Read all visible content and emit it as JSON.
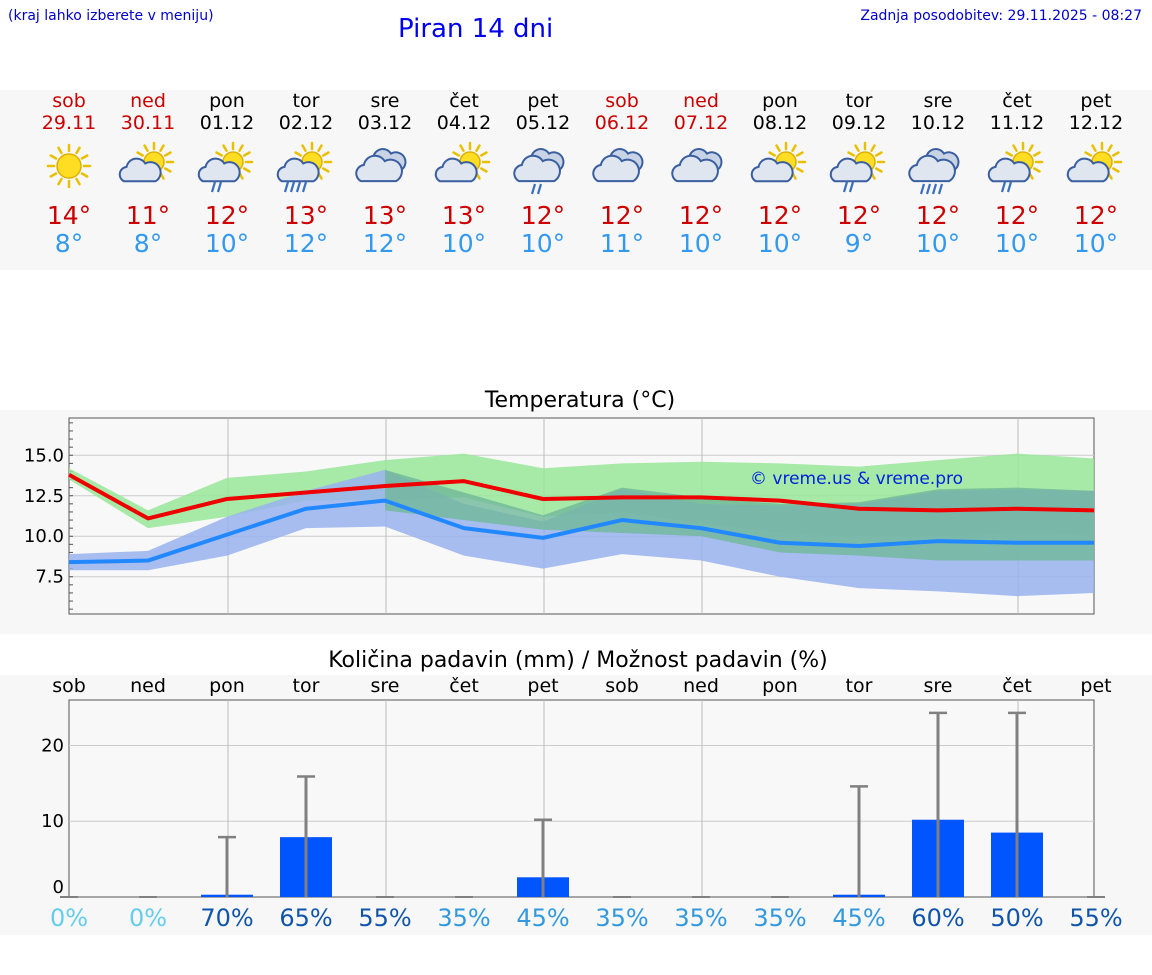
{
  "header": {
    "hint": "(kraj lahko izberete v meniju)",
    "title": "Piran 14 dni",
    "updated": "Zadnja posodobitev: 29.11.2025 - 08:27"
  },
  "days": [
    {
      "name": "sob",
      "date": "29.11",
      "weekend": true,
      "icon": "sun-icon",
      "max": "14°",
      "min": "8°",
      "prob": "0%"
    },
    {
      "name": "ned",
      "date": "30.11",
      "weekend": true,
      "icon": "sun-cloud-icon",
      "max": "11°",
      "min": "8°",
      "prob": "0%"
    },
    {
      "name": "pon",
      "date": "01.12",
      "weekend": false,
      "icon": "sun-cloud-rain-icon",
      "max": "12°",
      "min": "10°",
      "prob": "70%"
    },
    {
      "name": "tor",
      "date": "02.12",
      "weekend": false,
      "icon": "sun-cloud-heavy-rain-icon",
      "max": "13°",
      "min": "12°",
      "prob": "65%"
    },
    {
      "name": "sre",
      "date": "03.12",
      "weekend": false,
      "icon": "cloud-icon",
      "max": "13°",
      "min": "12°",
      "prob": "55%"
    },
    {
      "name": "čet",
      "date": "04.12",
      "weekend": false,
      "icon": "sun-cloud-icon",
      "max": "13°",
      "min": "10°",
      "prob": "35%"
    },
    {
      "name": "pet",
      "date": "05.12",
      "weekend": false,
      "icon": "cloud-rain-icon",
      "max": "12°",
      "min": "10°",
      "prob": "45%"
    },
    {
      "name": "sob",
      "date": "06.12",
      "weekend": true,
      "icon": "cloud-icon",
      "max": "12°",
      "min": "11°",
      "prob": "35%"
    },
    {
      "name": "ned",
      "date": "07.12",
      "weekend": true,
      "icon": "cloud-icon",
      "max": "12°",
      "min": "10°",
      "prob": "35%"
    },
    {
      "name": "pon",
      "date": "08.12",
      "weekend": false,
      "icon": "sun-cloud-icon",
      "max": "12°",
      "min": "10°",
      "prob": "35%"
    },
    {
      "name": "tor",
      "date": "09.12",
      "weekend": false,
      "icon": "sun-cloud-rain-icon",
      "max": "12°",
      "min": "9°",
      "prob": "45%"
    },
    {
      "name": "sre",
      "date": "10.12",
      "weekend": false,
      "icon": "cloud-heavy-rain-icon",
      "max": "12°",
      "min": "10°",
      "prob": "60%"
    },
    {
      "name": "čet",
      "date": "11.12",
      "weekend": false,
      "icon": "sun-cloud-rain-icon",
      "max": "12°",
      "min": "10°",
      "prob": "50%"
    },
    {
      "name": "pet",
      "date": "12.12",
      "weekend": false,
      "icon": "sun-cloud-icon",
      "max": "12°",
      "min": "10°",
      "prob": "55%"
    }
  ],
  "colors": {
    "max_line": "#ee0000",
    "min_line": "#2288ff",
    "max_band": "#99e699",
    "min_band": "#99b3ee",
    "bar": "#0055ff",
    "whisker": "#808080",
    "weekend": "#cc0000",
    "prob_low": "#66ccee",
    "prob_mid": "#3399dd",
    "prob_high": "#1155aa"
  },
  "chart_data": [
    {
      "type": "line",
      "title": "Temperatura (°C)",
      "watermark": "© vreme.us & vreme.pro",
      "yticks": [
        "15.0",
        "12.5",
        "10.0",
        "7.5"
      ],
      "ytick_values": [
        15.0,
        12.5,
        10.0,
        7.5
      ],
      "ylim": [
        5.2,
        17.3
      ],
      "x": [
        0,
        1,
        2,
        3,
        4,
        5,
        6,
        7,
        8,
        9,
        10,
        11,
        12,
        13
      ],
      "series": [
        {
          "name": "max",
          "values": [
            13.8,
            11.1,
            12.3,
            12.7,
            13.1,
            13.4,
            12.3,
            12.4,
            12.4,
            12.2,
            11.7,
            11.6,
            11.7,
            11.6
          ]
        },
        {
          "name": "min",
          "values": [
            8.4,
            8.5,
            10.1,
            11.7,
            12.2,
            10.5,
            9.9,
            11.0,
            10.5,
            9.6,
            9.4,
            9.7,
            9.6,
            9.6
          ]
        }
      ],
      "max_band_low": [
        13.5,
        10.5,
        11.2,
        12.2,
        12.2,
        12.4,
        11.2,
        11.5,
        10.8,
        10.2,
        10.0,
        10.0,
        10.2,
        10.1
      ],
      "max_band_high": [
        14.2,
        11.6,
        13.6,
        14.0,
        14.7,
        15.1,
        14.2,
        14.5,
        14.6,
        14.5,
        14.3,
        14.7,
        15.1,
        14.8
      ],
      "min_band_low": [
        7.9,
        7.9,
        8.8,
        10.5,
        10.6,
        8.8,
        8.0,
        8.9,
        8.5,
        7.5,
        6.8,
        6.6,
        6.3,
        6.5
      ],
      "min_band_high": [
        8.9,
        9.1,
        11.2,
        12.8,
        14.1,
        12.0,
        10.9,
        12.9,
        12.0,
        11.9,
        12.0,
        12.8,
        12.9,
        12.8
      ],
      "overlap_low": [
        null,
        null,
        null,
        null,
        11.6,
        null,
        10.4,
        10.2,
        10.0,
        9.0,
        8.8,
        8.5,
        8.5,
        8.5
      ],
      "overlap_high": [
        null,
        null,
        null,
        null,
        14.1,
        12.3,
        11.3,
        13.0,
        12.4,
        12.0,
        12.1,
        12.9,
        13.0,
        12.8
      ]
    },
    {
      "type": "bar",
      "title": "Količina padavin (mm) / Možnost padavin (%)",
      "categories": [
        "sob",
        "ned",
        "pon",
        "tor",
        "sre",
        "čet",
        "pet",
        "sob",
        "ned",
        "pon",
        "tor",
        "sre",
        "čet",
        "pet"
      ],
      "yticks": [
        "20",
        "10",
        "0"
      ],
      "ytick_values": [
        20,
        10,
        0
      ],
      "ylim": [
        0,
        26
      ],
      "values": [
        0,
        0,
        0.3,
        7.9,
        0,
        0,
        2.6,
        0,
        0,
        0,
        0.3,
        10.2,
        8.5,
        0
      ],
      "whisker_high": [
        0,
        0,
        7.9,
        15.9,
        0,
        0,
        10.2,
        0,
        0,
        0,
        14.6,
        24.3,
        24.3,
        0
      ],
      "probability": [
        "0%",
        "0%",
        "70%",
        "65%",
        "55%",
        "35%",
        "45%",
        "35%",
        "35%",
        "35%",
        "45%",
        "60%",
        "50%",
        "55%"
      ]
    }
  ]
}
